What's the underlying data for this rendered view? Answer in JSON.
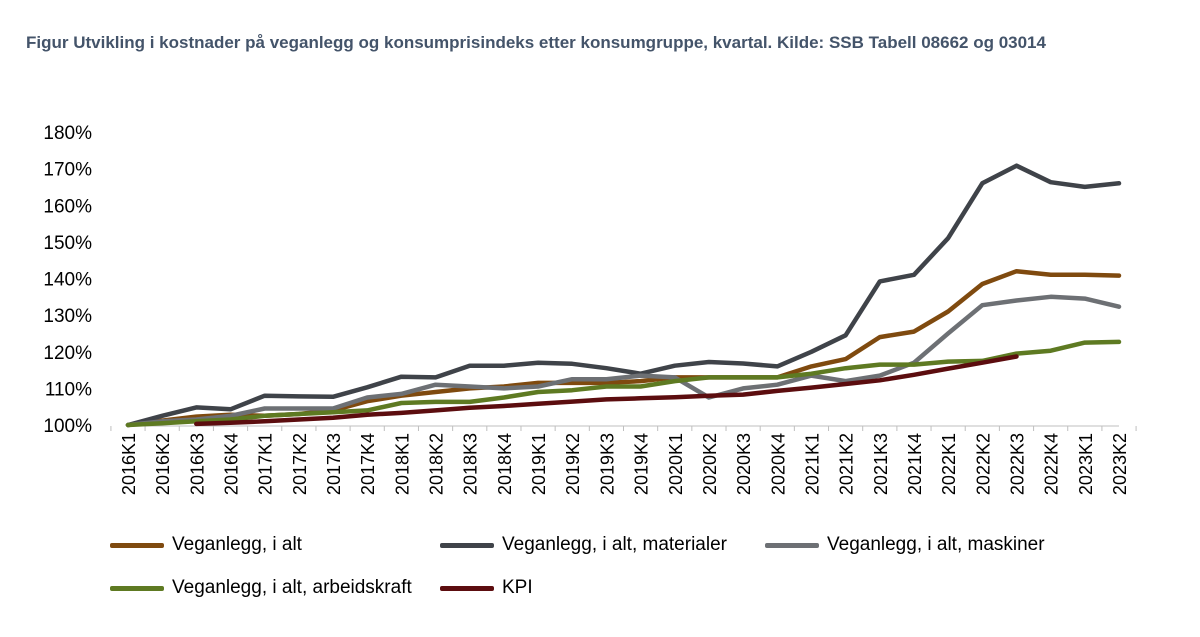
{
  "title": "Figur Utvikling i kostnader på veganlegg og konsumprisindeks etter konsumgruppe, kvartal. Kilde: SSB Tabell 08662 og 03014",
  "chart_data": {
    "type": "line",
    "ylim": [
      100,
      180
    ],
    "yticks": [
      "100%",
      "110%",
      "120%",
      "130%",
      "140%",
      "150%",
      "160%",
      "170%",
      "180%"
    ],
    "ytick_values": [
      100,
      110,
      120,
      130,
      140,
      150,
      160,
      170,
      180
    ],
    "grid": false,
    "legend_position": "bottom",
    "categories": [
      "2016K1",
      "2016K2",
      "2016K3",
      "2016K4",
      "2017K1",
      "2017K2",
      "2017K3",
      "2017K4",
      "2018K1",
      "2018K2",
      "2018K3",
      "2018K4",
      "2019K1",
      "2019K2",
      "2019K3",
      "2019K4",
      "2020K1",
      "2020K2",
      "2020K3",
      "2020K4",
      "2021K1",
      "2021K2",
      "2021K3",
      "2021K4",
      "2022K1",
      "2022K2",
      "2022K3",
      "2022K4",
      "2023K1",
      "2023K2"
    ],
    "series": [
      {
        "name": "Veganlegg, i alt",
        "color": "#7f4a0f",
        "values": [
          100,
          101.2,
          102.3,
          102.8,
          102.5,
          103,
          104,
          106.5,
          108,
          109,
          110,
          110.5,
          111.5,
          111.5,
          111.5,
          112,
          113,
          113,
          113,
          113,
          116,
          118,
          124,
          125.5,
          131,
          138.5,
          142,
          141,
          141,
          140.8
        ]
      },
      {
        "name": "Veganlegg, i alt, materialer",
        "color": "#3f4349",
        "values": [
          100,
          102.5,
          104.8,
          104.3,
          108,
          107.8,
          107.7,
          110.3,
          113.2,
          113,
          116.2,
          116.2,
          117,
          116.7,
          115.5,
          114,
          116.2,
          117.2,
          116.8,
          116,
          120,
          124.5,
          139.2,
          141,
          151,
          166,
          170.8,
          166.3,
          165,
          166
        ]
      },
      {
        "name": "Veganlegg, i alt, maskiner",
        "color": "#6d7074",
        "values": [
          100,
          101,
          101.5,
          102.5,
          104.5,
          104.5,
          104.5,
          107.5,
          108.5,
          111,
          110.5,
          110,
          110.5,
          112.5,
          112.5,
          113.5,
          113,
          107.5,
          110,
          111,
          113.5,
          112,
          113.5,
          117,
          125,
          132.7,
          134,
          135,
          134.5,
          132.3
        ]
      },
      {
        "name": "Veganlegg, i alt, arbeidskraft",
        "color": "#5e7a22",
        "values": [
          100,
          100.5,
          101,
          101.5,
          102.5,
          103,
          103.5,
          104,
          106,
          106.3,
          106.3,
          107.5,
          109,
          109.5,
          110.5,
          110.5,
          112,
          113,
          113,
          113,
          114,
          115.5,
          116.5,
          116.5,
          117.3,
          117.5,
          119.5,
          120.3,
          122.5,
          122.7
        ]
      },
      {
        "name": "KPI",
        "color": "#5c0d0f",
        "values": [
          null,
          null,
          100.3,
          100.6,
          101,
          101.5,
          102,
          102.8,
          103.3,
          104,
          104.7,
          105.2,
          105.8,
          106.4,
          107,
          107.3,
          107.6,
          108,
          108.3,
          109.3,
          110.2,
          111.2,
          112.2,
          113.7,
          115.4,
          117,
          118.7,
          null,
          null,
          null
        ]
      }
    ]
  }
}
